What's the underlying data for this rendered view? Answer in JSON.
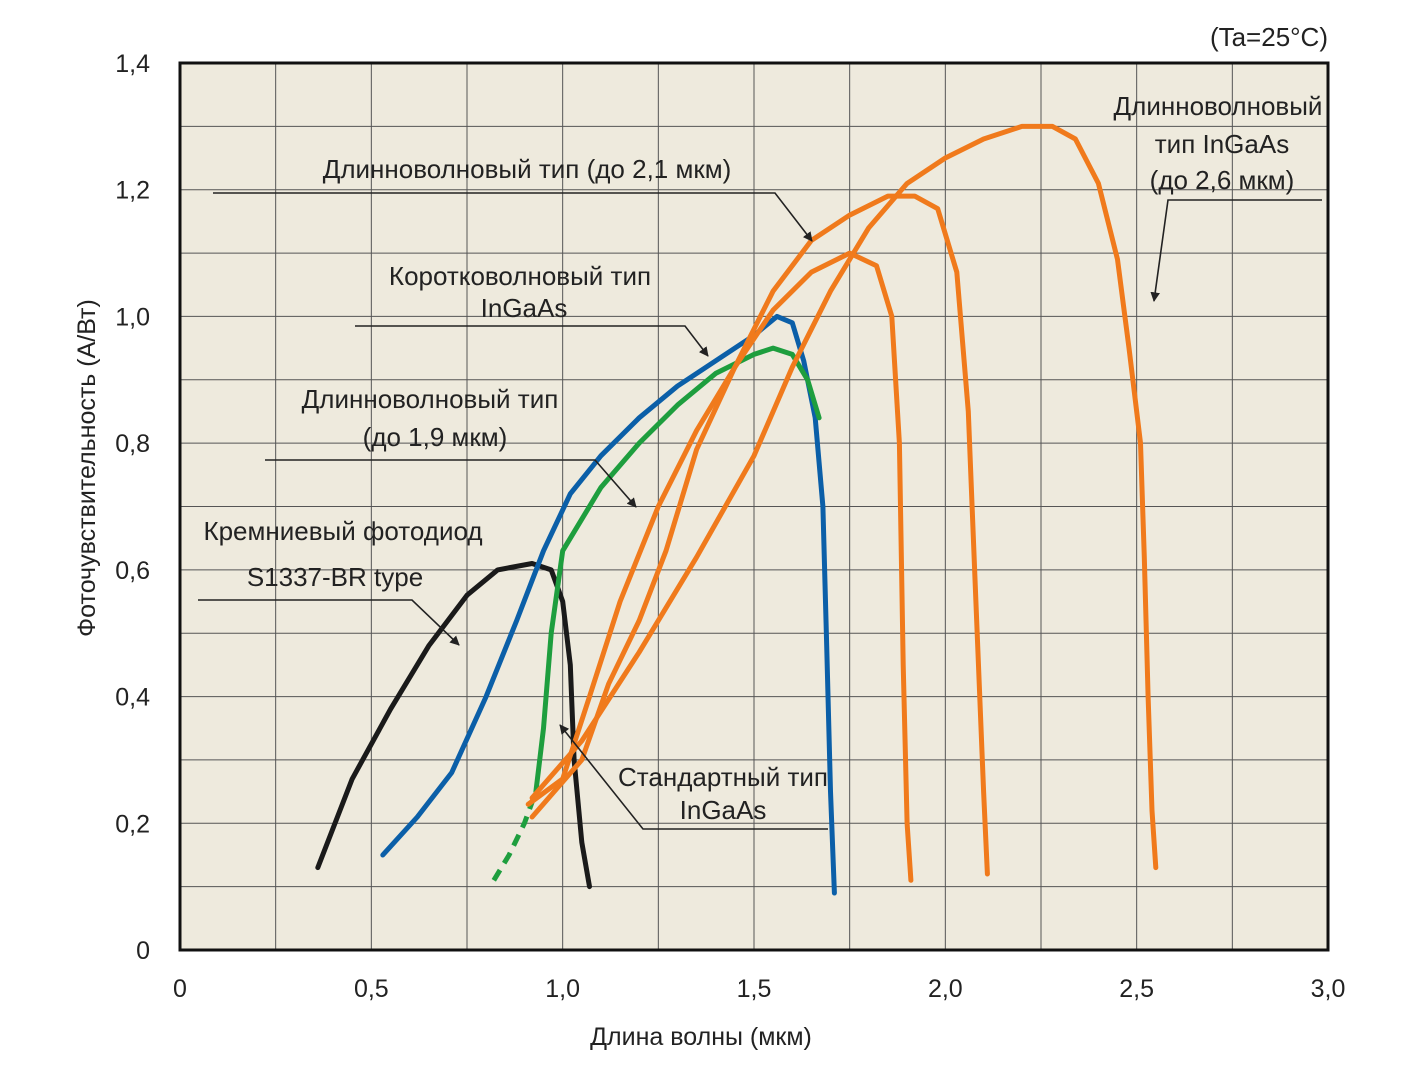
{
  "chart_data": {
    "type": "line",
    "xlabel": "Длина волны (мкм)",
    "ylabel": "Фоточувствительность (А/Вт)",
    "condition": "(Ta=25°C)",
    "xlim": [
      0,
      3.0
    ],
    "ylim": [
      0,
      1.4
    ],
    "grid": true,
    "x_ticks": [
      {
        "value": 0,
        "label": "0"
      },
      {
        "value": 0.5,
        "label": "0,5"
      },
      {
        "value": 1.0,
        "label": "1,0"
      },
      {
        "value": 1.5,
        "label": "1,5"
      },
      {
        "value": 2.0,
        "label": "2,0"
      },
      {
        "value": 2.5,
        "label": "2,5"
      },
      {
        "value": 3.0,
        "label": "3,0"
      }
    ],
    "y_ticks": [
      {
        "value": 0,
        "label": "0"
      },
      {
        "value": 0.2,
        "label": "0,2"
      },
      {
        "value": 0.4,
        "label": "0,4"
      },
      {
        "value": 0.6,
        "label": "0,6"
      },
      {
        "value": 0.8,
        "label": "0,8"
      },
      {
        "value": 1.0,
        "label": "1,0"
      },
      {
        "value": 1.2,
        "label": "1,2"
      },
      {
        "value": 1.4,
        "label": "1,4"
      }
    ],
    "series": [
      {
        "name": "Кремниевый фотодиод S1337-BR type",
        "color": "#1a1a1a",
        "points": [
          [
            0.36,
            0.13
          ],
          [
            0.45,
            0.27
          ],
          [
            0.55,
            0.38
          ],
          [
            0.65,
            0.48
          ],
          [
            0.75,
            0.56
          ],
          [
            0.83,
            0.6
          ],
          [
            0.92,
            0.61
          ],
          [
            0.97,
            0.6
          ],
          [
            1.0,
            0.55
          ],
          [
            1.02,
            0.45
          ],
          [
            1.03,
            0.3
          ],
          [
            1.05,
            0.17
          ],
          [
            1.07,
            0.1
          ]
        ]
      },
      {
        "name": "Коротковолновый тип InGaAs",
        "color": "#0b5fa8",
        "points": [
          [
            0.53,
            0.15
          ],
          [
            0.62,
            0.21
          ],
          [
            0.71,
            0.28
          ],
          [
            0.8,
            0.4
          ],
          [
            0.88,
            0.52
          ],
          [
            0.95,
            0.63
          ],
          [
            1.02,
            0.72
          ],
          [
            1.1,
            0.78
          ],
          [
            1.2,
            0.84
          ],
          [
            1.3,
            0.89
          ],
          [
            1.4,
            0.93
          ],
          [
            1.5,
            0.97
          ],
          [
            1.56,
            1.0
          ],
          [
            1.6,
            0.99
          ],
          [
            1.63,
            0.93
          ],
          [
            1.66,
            0.84
          ],
          [
            1.68,
            0.7
          ],
          [
            1.69,
            0.48
          ],
          [
            1.7,
            0.25
          ],
          [
            1.71,
            0.09
          ]
        ]
      },
      {
        "name": "Стандартный тип InGaAs",
        "color": "#1e9e3e",
        "dashed_until": 0.93,
        "points": [
          [
            0.82,
            0.11
          ],
          [
            0.86,
            0.15
          ],
          [
            0.9,
            0.2
          ],
          [
            0.93,
            0.25
          ],
          [
            0.95,
            0.35
          ],
          [
            0.97,
            0.5
          ],
          [
            1.0,
            0.63
          ],
          [
            1.1,
            0.73
          ],
          [
            1.2,
            0.8
          ],
          [
            1.3,
            0.86
          ],
          [
            1.4,
            0.91
          ],
          [
            1.5,
            0.94
          ],
          [
            1.55,
            0.95
          ],
          [
            1.6,
            0.94
          ],
          [
            1.64,
            0.9
          ],
          [
            1.67,
            0.84
          ]
        ]
      },
      {
        "name": "Длинноволновый тип (до 1,9 мкм)",
        "color": "#f07a1c",
        "points": [
          [
            0.91,
            0.23
          ],
          [
            1.0,
            0.27
          ],
          [
            1.07,
            0.4
          ],
          [
            1.15,
            0.55
          ],
          [
            1.25,
            0.7
          ],
          [
            1.35,
            0.82
          ],
          [
            1.45,
            0.92
          ],
          [
            1.55,
            1.01
          ],
          [
            1.65,
            1.07
          ],
          [
            1.75,
            1.1
          ],
          [
            1.82,
            1.08
          ],
          [
            1.86,
            1.0
          ],
          [
            1.88,
            0.8
          ],
          [
            1.89,
            0.45
          ],
          [
            1.9,
            0.2
          ],
          [
            1.91,
            0.11
          ]
        ]
      },
      {
        "name": "Длинноволновый тип (до 2,1 мкм)",
        "color": "#f07a1c",
        "points": [
          [
            0.92,
            0.21
          ],
          [
            1.05,
            0.3
          ],
          [
            1.12,
            0.42
          ],
          [
            1.2,
            0.52
          ],
          [
            1.27,
            0.63
          ],
          [
            1.35,
            0.79
          ],
          [
            1.45,
            0.92
          ],
          [
            1.55,
            1.04
          ],
          [
            1.65,
            1.12
          ],
          [
            1.75,
            1.16
          ],
          [
            1.85,
            1.19
          ],
          [
            1.92,
            1.19
          ],
          [
            1.98,
            1.17
          ],
          [
            2.03,
            1.07
          ],
          [
            2.06,
            0.85
          ],
          [
            2.08,
            0.55
          ],
          [
            2.1,
            0.25
          ],
          [
            2.11,
            0.12
          ]
        ]
      },
      {
        "name": "Длинноволновый тип InGaAs (до 2,6 мкм)",
        "color": "#f07a1c",
        "points": [
          [
            0.92,
            0.24
          ],
          [
            1.05,
            0.33
          ],
          [
            1.2,
            0.47
          ],
          [
            1.35,
            0.62
          ],
          [
            1.5,
            0.78
          ],
          [
            1.6,
            0.92
          ],
          [
            1.7,
            1.04
          ],
          [
            1.8,
            1.14
          ],
          [
            1.9,
            1.21
          ],
          [
            2.0,
            1.25
          ],
          [
            2.1,
            1.28
          ],
          [
            2.2,
            1.3
          ],
          [
            2.28,
            1.3
          ],
          [
            2.34,
            1.28
          ],
          [
            2.4,
            1.21
          ],
          [
            2.45,
            1.09
          ],
          [
            2.48,
            0.95
          ],
          [
            2.51,
            0.8
          ],
          [
            2.52,
            0.62
          ],
          [
            2.53,
            0.4
          ],
          [
            2.54,
            0.22
          ],
          [
            2.55,
            0.13
          ]
        ]
      }
    ],
    "annotations": [
      {
        "text": "Кремниевый фотодиод",
        "series": 0
      },
      {
        "text": "S1337-BR type",
        "series": 0
      },
      {
        "text": "Коротковолновый тип",
        "series": 1
      },
      {
        "text": "InGaAs",
        "series": 1
      },
      {
        "text": "Длинноволновый тип",
        "series": 3
      },
      {
        "text": "(до 1,9 мкм)",
        "series": 3
      },
      {
        "text": "Длинноволновый тип (до 2,1 мкм)",
        "series": 4
      },
      {
        "text": "Длинноволновый",
        "series": 5
      },
      {
        "text": "тип InGaAs",
        "series": 5
      },
      {
        "text": "(до 2,6 мкм)",
        "series": 5
      },
      {
        "text": "Стандартный тип",
        "series": 2
      },
      {
        "text": "InGaAs",
        "series": 2
      }
    ],
    "colors": {
      "background": "#eeeadd",
      "grid": "#555555",
      "frame": "#111111",
      "leader": "#222222"
    }
  }
}
